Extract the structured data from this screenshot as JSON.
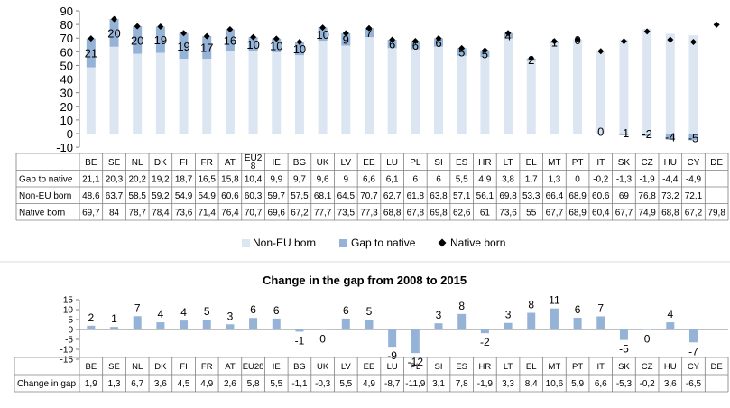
{
  "chart_data": [
    {
      "type": "bar",
      "categories": [
        "BE",
        "SE",
        "NL",
        "DK",
        "FI",
        "FR",
        "AT",
        "EU28",
        "IE",
        "BG",
        "UK",
        "LV",
        "EE",
        "LU",
        "PL",
        "SI",
        "ES",
        "HR",
        "LT",
        "EL",
        "MT",
        "PT",
        "IT",
        "SK",
        "CZ",
        "HU",
        "CY",
        "DE"
      ],
      "categories_display": [
        "BE",
        "SE",
        "NL",
        "DK",
        "FI",
        "FR",
        "AT",
        "EU2\n8",
        "IE",
        "BG",
        "UK",
        "LV",
        "EE",
        "LU",
        "PL",
        "SI",
        "ES",
        "HR",
        "LT",
        "EL",
        "MT",
        "PT",
        "IT",
        "SK",
        "CZ",
        "HU",
        "CY",
        "DE"
      ],
      "series": [
        {
          "name": "Non-EU born",
          "values": [
            48.6,
            63.7,
            58.5,
            59.2,
            54.9,
            54.9,
            60.6,
            60.3,
            59.7,
            57.5,
            68.1,
            64.5,
            70.7,
            62.7,
            61.8,
            63.8,
            57.1,
            56.1,
            69.8,
            53.3,
            66.4,
            68.9,
            60.6,
            69,
            76.8,
            73.2,
            72.1,
            null
          ]
        },
        {
          "name": "Gap to native",
          "values": [
            21.1,
            20.3,
            20.2,
            19.2,
            18.7,
            16.5,
            15.8,
            10.4,
            9.9,
            9.7,
            9.6,
            9,
            6.6,
            6.1,
            6,
            6,
            5.5,
            4.9,
            3.8,
            1.7,
            1.3,
            0,
            -0.2,
            -1.3,
            -1.9,
            -4.4,
            -4.9,
            null
          ]
        },
        {
          "name": "Native born",
          "values": [
            69.7,
            84,
            78.7,
            78.4,
            73.6,
            71.4,
            76.4,
            70.7,
            69.6,
            67.2,
            77.7,
            73.5,
            77.3,
            68.8,
            67.8,
            69.8,
            62.6,
            61,
            73.6,
            55,
            67.7,
            68.9,
            60.4,
            67.7,
            74.9,
            68.8,
            67.2,
            79.8
          ]
        }
      ],
      "bar_labels": [
        "21",
        "20",
        "20",
        "19",
        "19",
        "17",
        "16",
        "10",
        "10",
        "10",
        "10",
        "9",
        "7",
        "6",
        "6",
        "6",
        "5",
        "5",
        "4",
        "2",
        "1",
        "0",
        "0",
        "-1",
        "-2",
        "-4",
        "-5",
        ""
      ],
      "ylim": [
        -10,
        90
      ],
      "yticks": [
        "-10",
        "0",
        "10",
        "20",
        "30",
        "40",
        "50",
        "60",
        "70",
        "80",
        "90"
      ],
      "grid": false,
      "legend_placement": "bottom",
      "table": {
        "row_labels": [
          "Gap to native",
          "Non-EU born",
          "Native born"
        ],
        "rows": [
          [
            "21,1",
            "20,3",
            "20,2",
            "19,2",
            "18,7",
            "16,5",
            "15,8",
            "10,4",
            "9,9",
            "9,7",
            "9,6",
            "9",
            "6,6",
            "6,1",
            "6",
            "6",
            "5,5",
            "4,9",
            "3,8",
            "1,7",
            "1,3",
            "0",
            "-0,2",
            "-1,3",
            "-1,9",
            "-4,4",
            "-4,9",
            ""
          ],
          [
            "48,6",
            "63,7",
            "58,5",
            "59,2",
            "54,9",
            "54,9",
            "60,6",
            "60,3",
            "59,7",
            "57,5",
            "68,1",
            "64,5",
            "70,7",
            "62,7",
            "61,8",
            "63,8",
            "57,1",
            "56,1",
            "69,8",
            "53,3",
            "66,4",
            "68,9",
            "60,6",
            "69",
            "76,8",
            "73,2",
            "72,1",
            ""
          ],
          [
            "69,7",
            "84",
            "78,7",
            "78,4",
            "73,6",
            "71,4",
            "76,4",
            "70,7",
            "69,6",
            "67,2",
            "77,7",
            "73,5",
            "77,3",
            "68,8",
            "67,8",
            "69,8",
            "62,6",
            "61",
            "73,6",
            "55",
            "67,7",
            "68,9",
            "60,4",
            "67,7",
            "74,9",
            "68,8",
            "67,2",
            "79,8"
          ]
        ]
      },
      "colors": {
        "Non-EU born": "#dce6f2",
        "Gap to native": "#95b3d7",
        "Native born": "#000000"
      }
    },
    {
      "type": "bar",
      "title": "Change in the gap from 2008 to 2015",
      "categories": [
        "BE",
        "SE",
        "NL",
        "DK",
        "FI",
        "FR",
        "AT",
        "EU28",
        "IE",
        "BG",
        "UK",
        "LV",
        "EE",
        "LU",
        "PL",
        "SI",
        "ES",
        "HR",
        "LT",
        "EL",
        "MT",
        "PT",
        "IT",
        "SK",
        "CZ",
        "HU",
        "CY",
        "DE"
      ],
      "series": [
        {
          "name": "Change in gap",
          "values": [
            1.9,
            1.3,
            6.7,
            3.6,
            4.5,
            4.9,
            2.6,
            5.8,
            5.5,
            -1.1,
            -0.3,
            5.5,
            4.9,
            -8.7,
            -11.9,
            3.1,
            7.8,
            -1.9,
            3.3,
            8.4,
            10.6,
            5.9,
            6.6,
            -5.3,
            -0.2,
            3.6,
            -6.5,
            null
          ]
        }
      ],
      "bar_labels": [
        "2",
        "1",
        "7",
        "4",
        "4",
        "5",
        "3",
        "6",
        "6",
        "-1",
        "0",
        "6",
        "5",
        "-9",
        "-12",
        "3",
        "8",
        "-2",
        "3",
        "8",
        "11",
        "6",
        "7",
        "-5",
        "0",
        "4",
        "-7",
        ""
      ],
      "ylim": [
        -15,
        15
      ],
      "yticks": [
        "-15",
        "-10",
        "-5",
        "0",
        "5",
        "10",
        "15"
      ],
      "grid": false,
      "table": {
        "row_labels": [
          "Change in gap"
        ],
        "rows": [
          [
            "1,9",
            "1,3",
            "6,7",
            "3,6",
            "4,5",
            "4,9",
            "2,6",
            "5,8",
            "5,5",
            "-1,1",
            "-0,3",
            "5,5",
            "4,9",
            "-8,7",
            "-11,9",
            "3,1",
            "7,8",
            "-1,9",
            "3,3",
            "8,4",
            "10,6",
            "5,9",
            "6,6",
            "-5,3",
            "-0,2",
            "3,6",
            "-6,5",
            ""
          ]
        ]
      },
      "colors": {
        "Change in gap": "#95b3d7"
      }
    }
  ]
}
